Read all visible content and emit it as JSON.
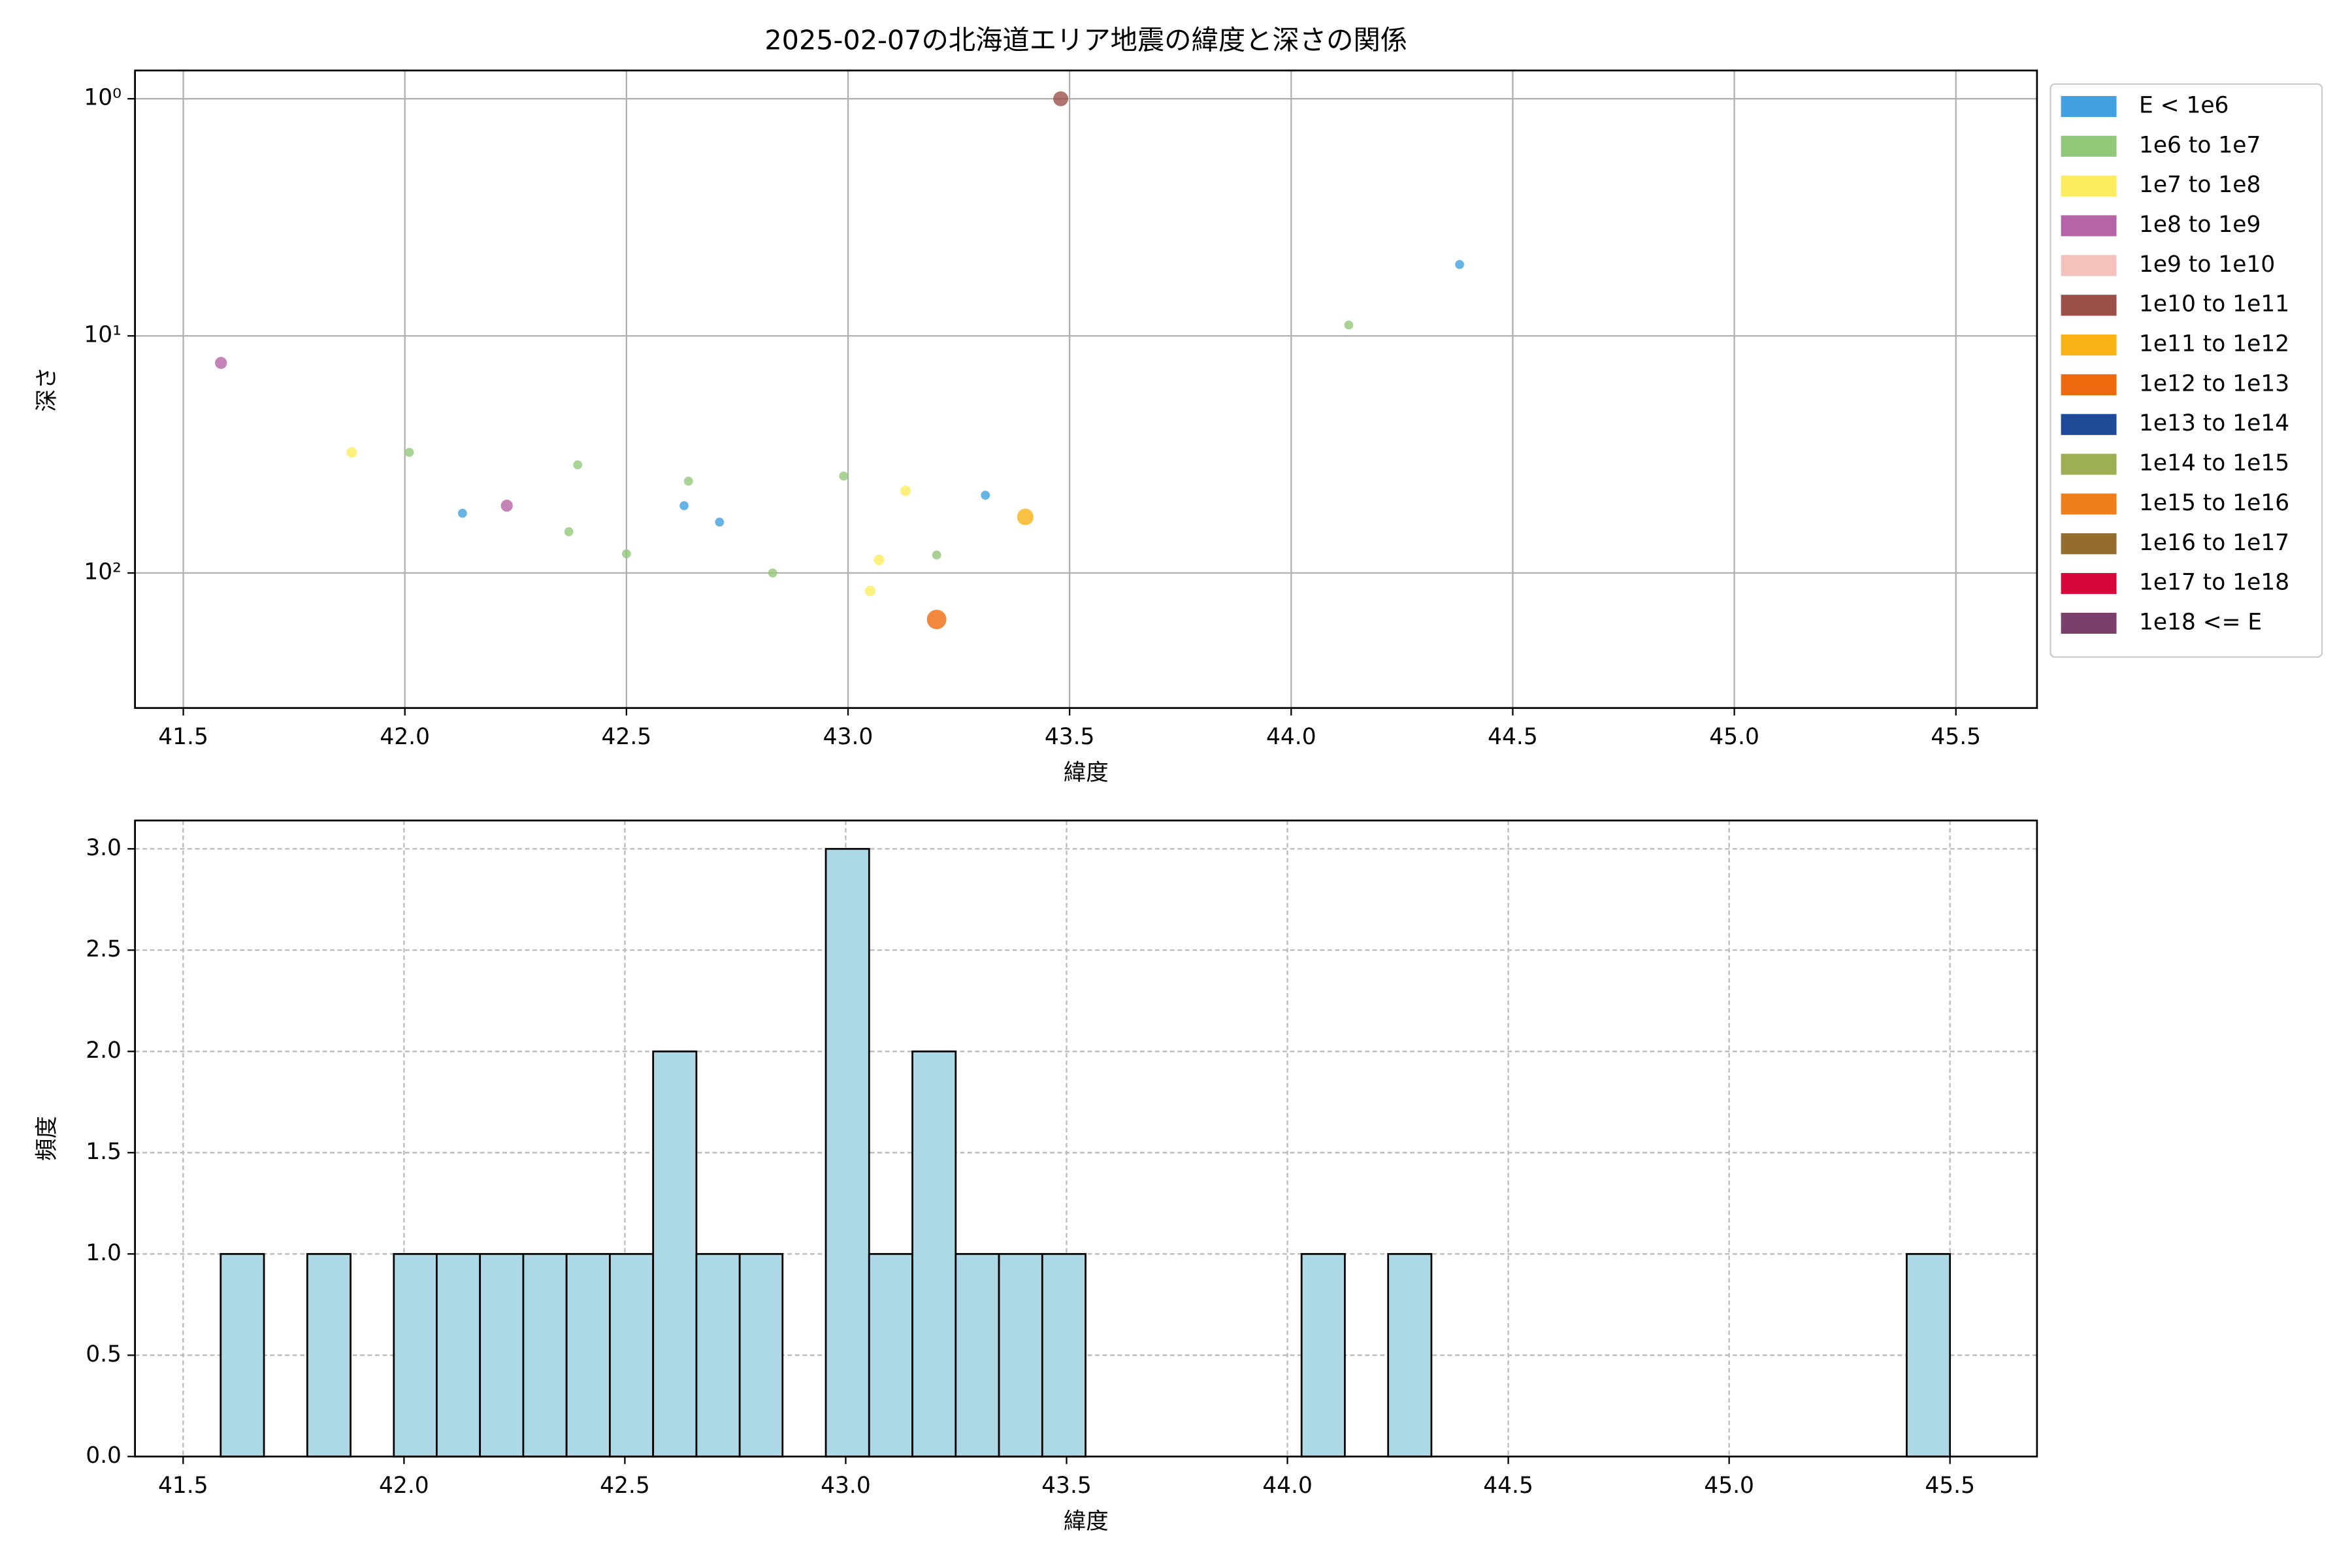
{
  "chart_data": [
    {
      "type": "scatter",
      "title": "2025-02-07の北海道エリア地震の緯度と深さの関係",
      "x_label": "緯度",
      "y_label": "深さ",
      "xlim": [
        41.391,
        45.683
      ],
      "ylim": [
        371,
        0.76
      ],
      "yscale": "log",
      "grid": true,
      "grid_style": "solid",
      "legend": "outside right",
      "xticks": [
        41.5,
        {
          "value": 42,
          "label": "42.0"
        },
        42.5,
        {
          "value": 43,
          "label": "43.0"
        },
        43.5,
        {
          "value": 44,
          "label": "44.0"
        },
        44.5,
        {
          "value": 45,
          "label": "45.0"
        },
        45.5
      ],
      "yticks": [
        {
          "value": 1,
          "label": "10⁰"
        },
        {
          "value": 10,
          "label": "10¹"
        },
        {
          "value": 100,
          "label": "10²"
        }
      ],
      "series": [
        {
          "name": "E < 1e6",
          "color": "#40a0e0",
          "size": 3,
          "x": [
            42.13,
            42.63,
            42.71,
            43.31,
            44.38
          ],
          "y": [
            56,
            52,
            61,
            47,
            5
          ]
        },
        {
          "name": "1e6 to 1e7",
          "color": "#92c87a",
          "size": 3,
          "x": [
            42.01,
            42.39,
            42.37,
            42.5,
            42.64,
            42.83,
            42.99,
            43.2,
            44.13
          ],
          "y": [
            31,
            35,
            67,
            83,
            41,
            100,
            39,
            84,
            9
          ]
        },
        {
          "name": "1e7 to 1e8",
          "color": "#fdec5e",
          "size": 3.5,
          "x": [
            41.88,
            43.07,
            43.13,
            43.05
          ],
          "y": [
            31,
            88,
            45,
            119
          ]
        },
        {
          "name": "1e8 to 1e9",
          "color": "#b565a7",
          "size": 4,
          "x": [
            41.585,
            42.23
          ],
          "y": [
            13,
            52
          ]
        },
        {
          "name": "1e9 to 1e10",
          "color": "#f5c1bc",
          "size": 4.5,
          "x": [],
          "y": []
        },
        {
          "name": "1e10 to 1e11",
          "color": "#9b5149",
          "size": 5,
          "x": [
            43.48
          ],
          "y": [
            1
          ]
        },
        {
          "name": "1e11 to 1e12",
          "color": "#f9b317",
          "size": 5.5,
          "x": [
            43.4
          ],
          "y": [
            58
          ]
        },
        {
          "name": "1e12 to 1e13",
          "color": "#ee6a0e",
          "size": 6.5,
          "x": [
            43.2
          ],
          "y": [
            157
          ]
        },
        {
          "name": "1e13 to 1e14",
          "color": "#1c4a96",
          "size": 7,
          "x": [],
          "y": []
        },
        {
          "name": "1e14 to 1e15",
          "color": "#9caf53",
          "size": 7.5,
          "x": [],
          "y": []
        },
        {
          "name": "1e15 to 1e16",
          "color": "#ee7f1b",
          "size": 8,
          "x": [],
          "y": []
        },
        {
          "name": "1e16 to 1e17",
          "color": "#936c2e",
          "size": 8.5,
          "x": [],
          "y": []
        },
        {
          "name": "1e17 to 1e18",
          "color": "#d5073b",
          "size": 9,
          "x": [],
          "y": []
        },
        {
          "name": "1e18 <= E",
          "color": "#7a3f6a",
          "size": 9.5,
          "x": [],
          "y": []
        }
      ]
    },
    {
      "type": "histogram",
      "x_label": "緯度",
      "y_label": "頻度",
      "xlim": [
        41.391,
        45.697
      ],
      "ylim": [
        0,
        3.14
      ],
      "grid": true,
      "grid_style": "dashed",
      "color": "#add8e6",
      "edge_color": "#000000",
      "xticks": [
        41.5,
        {
          "value": 42,
          "label": "42.0"
        },
        42.5,
        {
          "value": 43,
          "label": "43.0"
        },
        43.5,
        {
          "value": 44,
          "label": "44.0"
        },
        44.5,
        {
          "value": 45,
          "label": "45.0"
        },
        45.5
      ],
      "yticks": [
        {
          "value": 0,
          "label": "0.0"
        },
        0.5,
        {
          "value": 1,
          "label": "1.0"
        },
        1.5,
        {
          "value": 2,
          "label": "2.0"
        },
        2.5,
        {
          "value": 3,
          "label": "3.0"
        }
      ],
      "bins": [
        41.585,
        41.683,
        41.781,
        41.879,
        41.977,
        42.074,
        42.172,
        42.27,
        42.368,
        42.466,
        42.564,
        42.662,
        42.76,
        42.857,
        42.955,
        43.053,
        43.151,
        43.249,
        43.347,
        43.445,
        43.543,
        43.641,
        43.738,
        43.836,
        43.934,
        44.032,
        44.13,
        44.228,
        44.326,
        44.424,
        44.521,
        44.619,
        44.717,
        44.815,
        44.913,
        45.011,
        45.109,
        45.207,
        45.304,
        45.402,
        45.5
      ],
      "values": [
        1,
        0,
        1,
        0,
        1,
        1,
        1,
        1,
        1,
        1,
        2,
        1,
        1,
        0,
        3,
        1,
        2,
        1,
        1,
        1,
        0,
        0,
        0,
        0,
        0,
        1,
        0,
        1,
        0,
        0,
        0,
        0,
        0,
        0,
        0,
        0,
        0,
        0,
        0,
        1
      ]
    }
  ]
}
